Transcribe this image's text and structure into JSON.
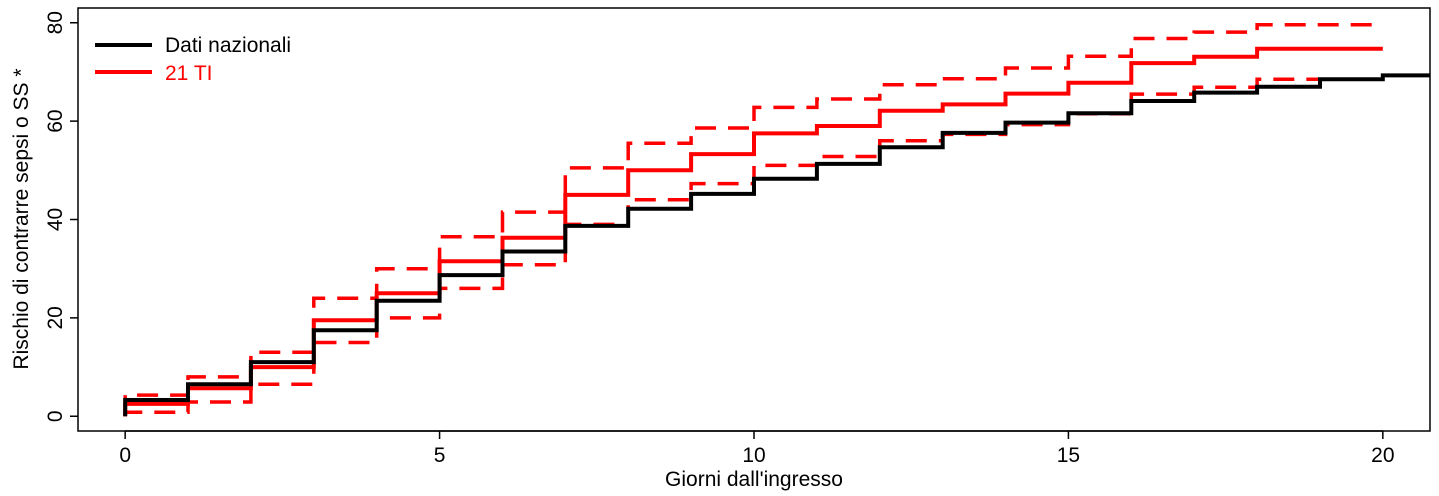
{
  "chart_data": {
    "type": "line",
    "title": "",
    "xlabel": "Giorni dall'ingresso",
    "ylabel": "Rischio di contrarre sepsi o SS *",
    "xlim": [
      -0.75,
      20.75
    ],
    "ylim": [
      -3,
      83
    ],
    "x_ticks": [
      "0",
      "5",
      "10",
      "15",
      "20"
    ],
    "y_ticks": [
      "0",
      "20",
      "40",
      "60",
      "80"
    ],
    "grid": false,
    "legend_position": "top-left",
    "step_days": [
      0,
      1,
      2,
      3,
      4,
      5,
      6,
      7,
      8,
      9,
      10,
      11,
      12,
      13,
      14,
      15,
      16,
      17,
      18,
      19,
      20
    ],
    "series": [
      {
        "name": "Dati nazionali",
        "color": "#000000",
        "style": "solid",
        "x_end": 20.75,
        "values": [
          3.3,
          6.5,
          11.0,
          17.5,
          23.5,
          28.7,
          33.5,
          38.7,
          42.2,
          45.2,
          48.3,
          51.3,
          54.7,
          57.6,
          59.7,
          61.6,
          64.1,
          65.8,
          67.0,
          68.5,
          69.3
        ]
      },
      {
        "name": "21 TI",
        "color": "#ff0000",
        "style": "solid",
        "x_end": 20,
        "values": [
          2.5,
          5.7,
          10.0,
          19.5,
          25.0,
          31.5,
          36.3,
          45.0,
          50.0,
          53.3,
          57.5,
          59.0,
          62.1,
          63.4,
          65.6,
          67.8,
          71.8,
          73.1,
          74.7,
          74.7,
          74.7
        ]
      },
      {
        "name": "",
        "color": "#ff0000",
        "style": "dashed",
        "x_end": 20,
        "values": [
          4.3,
          8.0,
          13.0,
          24.0,
          30.0,
          36.5,
          41.5,
          50.5,
          55.5,
          58.6,
          62.8,
          64.5,
          67.4,
          68.6,
          70.8,
          73.2,
          76.8,
          78.1,
          79.6,
          79.6,
          79.6
        ]
      },
      {
        "name": "",
        "color": "#ff0000",
        "style": "dashed",
        "x_end": 20,
        "values": [
          0.8,
          2.9,
          6.5,
          15.0,
          20.0,
          26.0,
          30.8,
          39.0,
          44.0,
          47.3,
          51.0,
          52.8,
          56.0,
          57.3,
          59.3,
          61.5,
          65.5,
          66.9,
          68.5,
          68.5,
          68.5
        ]
      }
    ]
  },
  "legend": {
    "items": [
      {
        "label": "Dati nazionali",
        "color": "#000000"
      },
      {
        "label": "21 TI",
        "color": "#ff0000"
      }
    ]
  }
}
